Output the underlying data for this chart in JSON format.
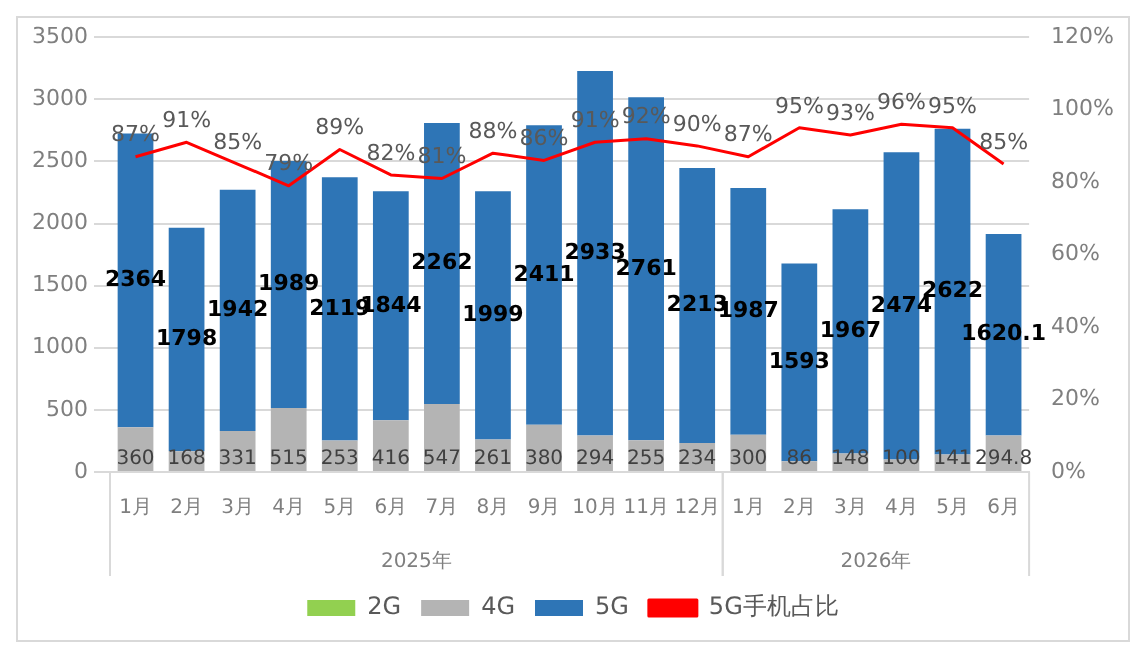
{
  "chart_data": {
    "type": "bar",
    "stacked": true,
    "categories": [
      "1月",
      "2月",
      "3月",
      "4月",
      "5月",
      "6月",
      "7月",
      "8月",
      "9月",
      "10月",
      "11月",
      "12月",
      "1月",
      "2月",
      "3月",
      "4月",
      "5月",
      "6月"
    ],
    "series": [
      {
        "name": "2G",
        "color": "#92d050",
        "values": [
          null,
          null,
          null,
          null,
          null,
          null,
          null,
          null,
          null,
          null,
          null,
          null,
          null,
          null,
          null,
          null,
          null,
          null
        ]
      },
      {
        "name": "4G",
        "color": "#b4b4b4",
        "values": [
          360,
          168,
          331,
          515,
          253,
          416,
          547,
          261,
          380,
          294,
          255,
          234,
          300,
          86,
          148,
          100,
          141,
          294.8
        ]
      },
      {
        "name": "5G",
        "color": "#2e75b6",
        "values": [
          2364,
          1798,
          1942,
          1989,
          2119,
          1844,
          2262,
          1999,
          2411,
          2933,
          2761,
          2213,
          1987,
          1593,
          1967,
          2474,
          2622,
          1620.1
        ]
      },
      {
        "name": "5G手机占比",
        "type": "line",
        "axis": "y2",
        "color": "#ff0000",
        "marker": "none",
        "values": [
          87,
          91,
          85,
          79,
          89,
          82,
          81,
          88,
          86,
          91,
          92,
          90,
          87,
          95,
          93,
          96,
          95,
          85
        ],
        "value_labels": [
          "87%",
          "91%",
          "85%",
          "79%",
          "89%",
          "82%",
          "81%",
          "88%",
          "86%",
          "91%",
          "92%",
          "90%",
          "87%",
          "95%",
          "93%",
          "96%",
          "95%",
          "85%"
        ]
      }
    ],
    "ylim": [
      0,
      3500
    ],
    "yticks": [
      0,
      500,
      1000,
      1500,
      2000,
      2500,
      3000,
      3500
    ],
    "y2lim": [
      0,
      120
    ],
    "y2ticks": [
      {
        "value": 0,
        "label": "0%"
      },
      {
        "value": 20,
        "label": "20%"
      },
      {
        "value": 40,
        "label": "40%"
      },
      {
        "value": 60,
        "label": "60%"
      },
      {
        "value": 80,
        "label": "80%"
      },
      {
        "value": 100,
        "label": "100%"
      },
      {
        "value": 120,
        "label": "120%"
      }
    ],
    "annotations": [
      "2025年",
      "2026年"
    ],
    "grid": "y",
    "legend": "bottom",
    "data_labels": true
  }
}
